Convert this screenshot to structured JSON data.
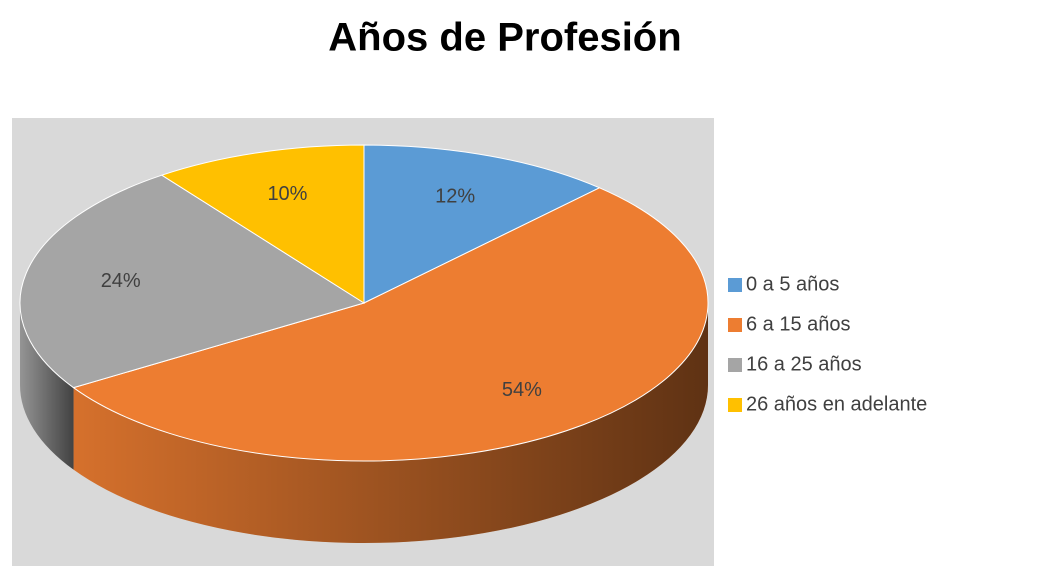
{
  "chart_data": {
    "type": "pie",
    "title": "Años de Profesión",
    "categories": [
      "0 a 5 años",
      "6 a 15 años",
      "16 a 25 años",
      "26 años en adelante"
    ],
    "values": [
      12,
      54,
      24,
      10
    ],
    "value_labels": [
      "12%",
      "54%",
      "24%",
      "10%"
    ],
    "colors": [
      "#5b9bd5",
      "#ed7d31",
      "#a5a5a5",
      "#ffc000"
    ],
    "legend": "right"
  }
}
